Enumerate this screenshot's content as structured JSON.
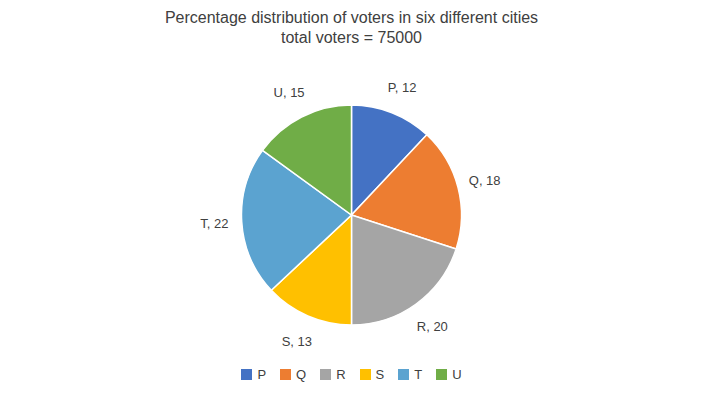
{
  "chart_data": {
    "type": "pie",
    "title": "Percentage distribution of voters in six different cities\ntotal voters = 75000",
    "categories": [
      "P",
      "Q",
      "R",
      "S",
      "T",
      "U"
    ],
    "values": [
      12,
      18,
      20,
      13,
      22,
      15
    ],
    "value_labels": [
      "P, 12",
      "Q, 18",
      "R, 20",
      "S, 13",
      "T, 22",
      "U, 15"
    ],
    "colors": [
      "#4472C4",
      "#ED7D31",
      "#A5A5A5",
      "#FFC000",
      "#5BA3D0",
      "#70AD47"
    ],
    "data_labels": true,
    "legend": "bottom"
  }
}
